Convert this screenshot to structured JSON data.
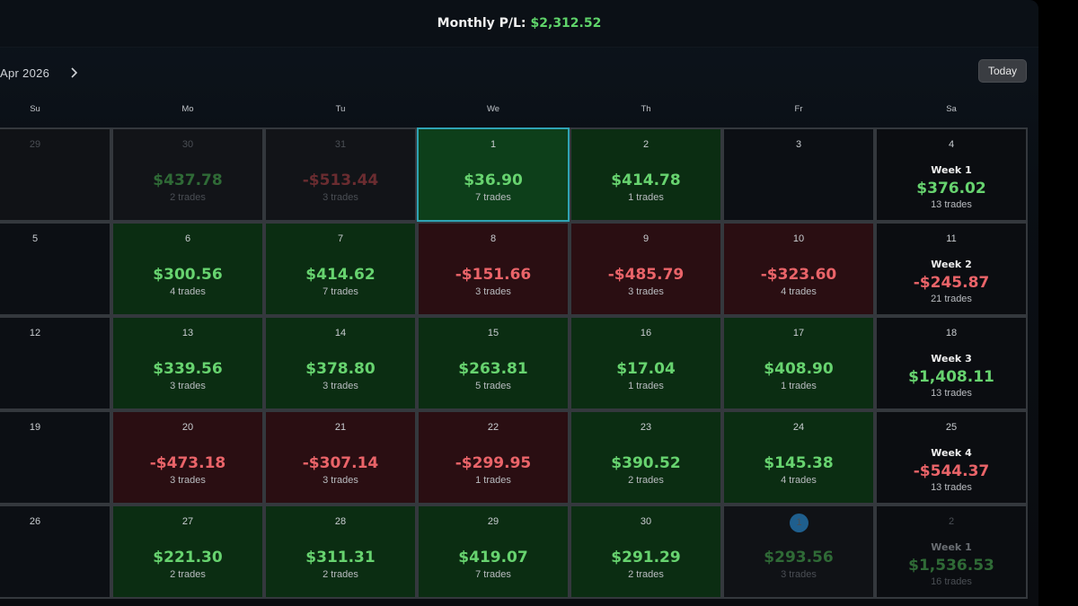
{
  "header": {
    "label": "Monthly P/L:",
    "amount": "$2,312.52"
  },
  "nav": {
    "month": "Apr 2026",
    "next_icon": "chevron-right-icon"
  },
  "today_label": "Today",
  "weekdays": [
    "Su",
    "Mo",
    "Tu",
    "We",
    "Th",
    "Fr",
    "Sa"
  ],
  "weeks": [
    [
      {
        "day": "29",
        "state": "dim"
      },
      {
        "day": "30",
        "state": "dim pos",
        "amount": "$437.78",
        "tone": "g",
        "trades": "2 trades"
      },
      {
        "day": "31",
        "state": "dim neg",
        "amount": "-$513.44",
        "tone": "r",
        "trades": "3 trades"
      },
      {
        "day": "1",
        "state": "sel",
        "amount": "$36.90",
        "tone": "g",
        "trades": "7 trades"
      },
      {
        "day": "2",
        "state": "pos",
        "amount": "$414.78",
        "tone": "g",
        "trades": "1 trades"
      },
      {
        "day": "3",
        "state": ""
      },
      {
        "day": "4",
        "state": "sat",
        "week": "Week 1",
        "amount": "$376.02",
        "tone": "g",
        "trades": "13 trades"
      }
    ],
    [
      {
        "day": "5",
        "state": ""
      },
      {
        "day": "6",
        "state": "pos",
        "amount": "$300.56",
        "tone": "g",
        "trades": "4 trades"
      },
      {
        "day": "7",
        "state": "pos",
        "amount": "$414.62",
        "tone": "g",
        "trades": "7 trades"
      },
      {
        "day": "8",
        "state": "neg",
        "amount": "-$151.66",
        "tone": "r",
        "trades": "3 trades"
      },
      {
        "day": "9",
        "state": "neg",
        "amount": "-$485.79",
        "tone": "r",
        "trades": "3 trades"
      },
      {
        "day": "10",
        "state": "neg",
        "amount": "-$323.60",
        "tone": "r",
        "trades": "4 trades"
      },
      {
        "day": "11",
        "state": "sat",
        "week": "Week 2",
        "amount": "-$245.87",
        "tone": "r",
        "trades": "21 trades"
      }
    ],
    [
      {
        "day": "12",
        "state": ""
      },
      {
        "day": "13",
        "state": "pos",
        "amount": "$339.56",
        "tone": "g",
        "trades": "3 trades"
      },
      {
        "day": "14",
        "state": "pos",
        "amount": "$378.80",
        "tone": "g",
        "trades": "3 trades"
      },
      {
        "day": "15",
        "state": "pos",
        "amount": "$263.81",
        "tone": "g",
        "trades": "5 trades"
      },
      {
        "day": "16",
        "state": "pos",
        "amount": "$17.04",
        "tone": "g",
        "trades": "1 trades"
      },
      {
        "day": "17",
        "state": "pos",
        "amount": "$408.90",
        "tone": "g",
        "trades": "1 trades"
      },
      {
        "day": "18",
        "state": "sat",
        "week": "Week 3",
        "amount": "$1,408.11",
        "tone": "g",
        "trades": "13 trades"
      }
    ],
    [
      {
        "day": "19",
        "state": ""
      },
      {
        "day": "20",
        "state": "neg",
        "amount": "-$473.18",
        "tone": "r",
        "trades": "3 trades"
      },
      {
        "day": "21",
        "state": "neg",
        "amount": "-$307.14",
        "tone": "r",
        "trades": "3 trades"
      },
      {
        "day": "22",
        "state": "neg",
        "amount": "-$299.95",
        "tone": "r",
        "trades": "1 trades"
      },
      {
        "day": "23",
        "state": "pos",
        "amount": "$390.52",
        "tone": "g",
        "trades": "2 trades"
      },
      {
        "day": "24",
        "state": "pos",
        "amount": "$145.38",
        "tone": "g",
        "trades": "4 trades"
      },
      {
        "day": "25",
        "state": "sat",
        "week": "Week 4",
        "amount": "-$544.37",
        "tone": "r",
        "trades": "13 trades"
      }
    ],
    [
      {
        "day": "26",
        "state": ""
      },
      {
        "day": "27",
        "state": "pos",
        "amount": "$221.30",
        "tone": "g",
        "trades": "2 trades"
      },
      {
        "day": "28",
        "state": "pos",
        "amount": "$311.31",
        "tone": "g",
        "trades": "2 trades"
      },
      {
        "day": "29",
        "state": "pos",
        "amount": "$419.07",
        "tone": "g",
        "trades": "7 trades"
      },
      {
        "day": "30",
        "state": "pos",
        "amount": "$291.29",
        "tone": "g",
        "trades": "2 trades"
      },
      {
        "day": "1",
        "state": "dim",
        "badge": true,
        "amount": "$293.56",
        "tone": "g",
        "trades": "3 trades"
      },
      {
        "day": "2",
        "state": "dim sat",
        "week": "Week 1",
        "amount": "$1,536.53",
        "tone": "g",
        "trades": "16 trades"
      }
    ]
  ]
}
